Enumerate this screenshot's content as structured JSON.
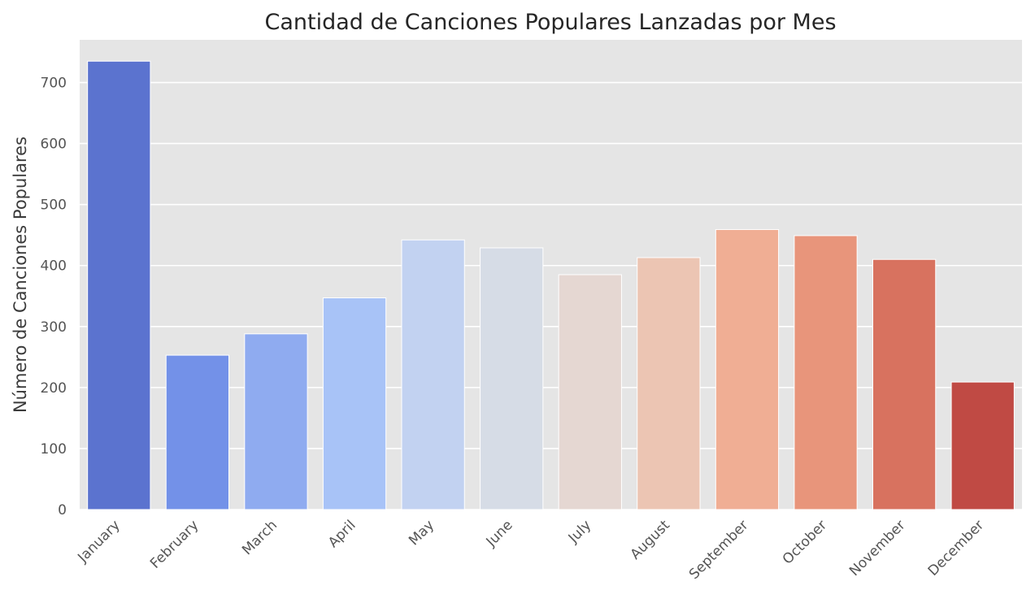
{
  "chart_data": {
    "type": "bar",
    "title": "Cantidad de Canciones Populares Lanzadas por Mes",
    "xlabel": "",
    "ylabel": "Número de Canciones Populares",
    "categories": [
      "January",
      "February",
      "March",
      "April",
      "May",
      "June",
      "July",
      "August",
      "September",
      "October",
      "November",
      "December"
    ],
    "values": [
      735,
      253,
      288,
      347,
      442,
      429,
      385,
      413,
      459,
      449,
      410,
      209
    ],
    "colors": [
      "#5b73cf",
      "#7391e8",
      "#8fabf0",
      "#a8c3f7",
      "#c2d2f1",
      "#d6dce6",
      "#e5d7d2",
      "#ecc5b3",
      "#f0ae94",
      "#e8957b",
      "#d8725f",
      "#c04a44"
    ],
    "ylim": [
      0,
      770
    ],
    "yticks": [
      0,
      100,
      200,
      300,
      400,
      500,
      600,
      700
    ],
    "grid": true,
    "background": "#e5e5e5",
    "legend": "none"
  }
}
